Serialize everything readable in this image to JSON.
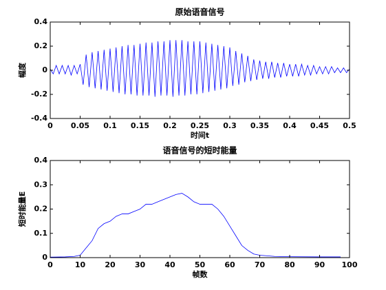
{
  "chart_data": [
    {
      "type": "line",
      "title": "原始语音信号",
      "xlabel": "时间t",
      "ylabel": "幅度",
      "xlim": [
        0,
        0.5
      ],
      "ylim": [
        -0.4,
        0.4
      ],
      "xticks": [
        0,
        0.05,
        0.1,
        0.15,
        0.2,
        0.25,
        0.3,
        0.35,
        0.4,
        0.45,
        0.5
      ],
      "yticks": [
        -0.4,
        -0.2,
        0,
        0.2,
        0.4
      ],
      "color": "#0000ff",
      "x": [
        0,
        0.005,
        0.01,
        0.015,
        0.02,
        0.025,
        0.03,
        0.035,
        0.04,
        0.045,
        0.05,
        0.055,
        0.06,
        0.065,
        0.07,
        0.075,
        0.08,
        0.085,
        0.09,
        0.095,
        0.1,
        0.105,
        0.11,
        0.115,
        0.12,
        0.125,
        0.13,
        0.135,
        0.14,
        0.145,
        0.15,
        0.155,
        0.16,
        0.165,
        0.17,
        0.175,
        0.18,
        0.185,
        0.19,
        0.195,
        0.2,
        0.205,
        0.21,
        0.215,
        0.22,
        0.225,
        0.23,
        0.235,
        0.24,
        0.245,
        0.25,
        0.255,
        0.26,
        0.265,
        0.27,
        0.275,
        0.28,
        0.285,
        0.29,
        0.295,
        0.3,
        0.305,
        0.31,
        0.315,
        0.32,
        0.325,
        0.33,
        0.335,
        0.34,
        0.345,
        0.35,
        0.355,
        0.36,
        0.365,
        0.37,
        0.375,
        0.38,
        0.385,
        0.39,
        0.395,
        0.4,
        0.405,
        0.41,
        0.415,
        0.42,
        0.425,
        0.43,
        0.435,
        0.44,
        0.445,
        0.45,
        0.455,
        0.46,
        0.465,
        0.47,
        0.475,
        0.48,
        0.485,
        0.49,
        0.495,
        0.5
      ],
      "values": [
        0.01,
        -0.03,
        0.04,
        -0.03,
        0.04,
        -0.03,
        0.04,
        -0.04,
        0.04,
        -0.03,
        0.05,
        -0.12,
        0.13,
        -0.14,
        0.15,
        -0.15,
        0.16,
        -0.16,
        0.17,
        -0.17,
        0.18,
        -0.18,
        0.19,
        -0.19,
        0.2,
        -0.2,
        0.21,
        -0.2,
        0.21,
        -0.21,
        0.22,
        -0.21,
        0.23,
        -0.21,
        0.23,
        -0.22,
        0.24,
        -0.21,
        0.24,
        -0.21,
        0.25,
        -0.22,
        0.25,
        -0.21,
        0.25,
        -0.21,
        0.24,
        -0.2,
        0.24,
        -0.2,
        0.24,
        -0.19,
        0.23,
        -0.18,
        0.22,
        -0.17,
        0.21,
        -0.16,
        0.2,
        -0.15,
        0.19,
        -0.13,
        0.16,
        -0.12,
        0.14,
        -0.1,
        0.12,
        -0.09,
        0.09,
        -0.08,
        0.08,
        -0.07,
        0.07,
        -0.07,
        0.07,
        -0.06,
        0.06,
        -0.06,
        0.06,
        -0.05,
        0.05,
        -0.05,
        0.05,
        -0.05,
        0.05,
        -0.04,
        0.04,
        -0.04,
        0.04,
        -0.03,
        0.03,
        -0.03,
        0.03,
        -0.03,
        0.03,
        -0.02,
        0.02,
        -0.02,
        0.02,
        -0.02,
        0.01
      ]
    },
    {
      "type": "line",
      "title": "语音信号的短时能量",
      "xlabel": "帧数",
      "ylabel": "短时能量E",
      "xlim": [
        0,
        100
      ],
      "ylim": [
        0,
        0.4
      ],
      "xticks": [
        0,
        10,
        20,
        30,
        40,
        50,
        60,
        70,
        80,
        90,
        100
      ],
      "yticks": [
        0,
        0.1,
        0.2,
        0.3,
        0.4
      ],
      "color": "#0000ff",
      "x": [
        0,
        5,
        8,
        10,
        12,
        14,
        16,
        18,
        20,
        22,
        24,
        26,
        28,
        30,
        32,
        34,
        36,
        38,
        40,
        42,
        44,
        46,
        48,
        50,
        52,
        54,
        56,
        58,
        60,
        62,
        64,
        66,
        68,
        70,
        75,
        80,
        90,
        97
      ],
      "values": [
        0.002,
        0.003,
        0.005,
        0.01,
        0.04,
        0.07,
        0.12,
        0.14,
        0.15,
        0.17,
        0.18,
        0.18,
        0.19,
        0.2,
        0.22,
        0.22,
        0.23,
        0.24,
        0.25,
        0.26,
        0.265,
        0.25,
        0.23,
        0.22,
        0.22,
        0.22,
        0.2,
        0.17,
        0.13,
        0.09,
        0.05,
        0.03,
        0.015,
        0.01,
        0.005,
        0.004,
        0.003,
        0.003
      ]
    }
  ]
}
